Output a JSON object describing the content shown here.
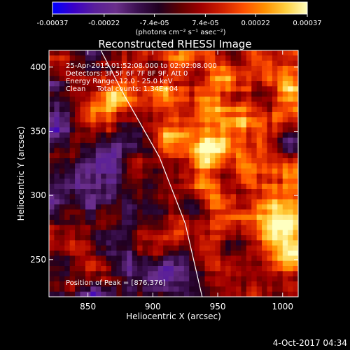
{
  "colorbar": {
    "ticks": [
      "-0.00037",
      "-0.00022",
      "-7.4e-05",
      "7.4e-05",
      "0.00022",
      "0.00037"
    ],
    "tick_values": [
      -0.00037,
      -0.00022,
      -7.4e-05,
      7.4e-05,
      0.00022,
      0.00037
    ],
    "vmin": -0.00037,
    "vmax": 0.00037,
    "unit_label": "(photons cm⁻² s⁻¹ asec⁻²)",
    "colormap": [
      "#0000ff",
      "#3a00c8",
      "#5a1f9a",
      "#6a2f8a",
      "#3b1050",
      "#200020",
      "#600000",
      "#a00000",
      "#d02000",
      "#ff5000",
      "#ff9000",
      "#ffd040",
      "#ffffc0"
    ]
  },
  "info": {
    "line1": "25-Apr-2015 01:52:08.000 to 02:02:08.000",
    "line2": "Detectors: 3F 5F 6F 7F 8F 9F, Att 0",
    "line3": "Energy Range: 12.0 - 25.0 keV",
    "line4": "Clean     Total counts: 1.34E+04"
  },
  "peak_label": "Position of Peak = [876,376]",
  "timestamp": "4-Oct-2017 04:34",
  "chart_data": {
    "type": "heatmap",
    "title": "Reconstructed RHESSI Image",
    "xlabel": "Heliocentric X (arcsec)",
    "ylabel": "Heliocentric Y (arcsec)",
    "xlim": [
      820,
      1012
    ],
    "ylim": [
      221,
      413
    ],
    "xticks": [
      850,
      900,
      950,
      1000
    ],
    "yticks": [
      250,
      300,
      350,
      400
    ],
    "peak": [
      876,
      376
    ],
    "limb_line": [
      [
        860,
        413
      ],
      [
        878,
        378
      ],
      [
        905,
        330
      ],
      [
        925,
        278
      ],
      [
        938,
        221
      ]
    ],
    "grid": false
  }
}
